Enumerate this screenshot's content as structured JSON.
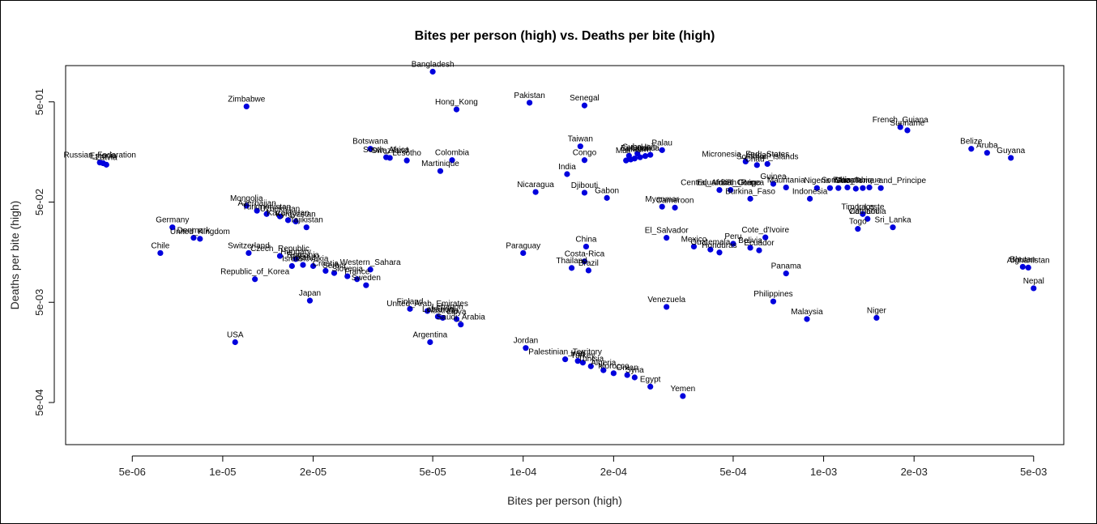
{
  "chart_data": {
    "type": "scatter",
    "title": "Bites per person (high) vs. Deaths per bite (high)",
    "xlabel": "Bites per person (high)",
    "ylabel": "Deaths per bite (high)",
    "xscale": "log",
    "yscale": "log",
    "xlim": [
      3e-06,
      0.0063
    ],
    "ylim": [
      0.00019,
      1.15
    ],
    "xticks": [
      {
        "v": 5e-06,
        "label": "5e-06"
      },
      {
        "v": 1e-05,
        "label": "1e-05"
      },
      {
        "v": 2e-05,
        "label": "2e-05"
      },
      {
        "v": 5e-05,
        "label": "5e-05"
      },
      {
        "v": 0.0001,
        "label": "1e-04"
      },
      {
        "v": 0.0002,
        "label": "2e-04"
      },
      {
        "v": 0.0005,
        "label": "5e-04"
      },
      {
        "v": 0.001,
        "label": "1e-03"
      },
      {
        "v": 0.002,
        "label": "2e-03"
      },
      {
        "v": 0.005,
        "label": "5e-03"
      }
    ],
    "yticks": [
      {
        "v": 0.0005,
        "label": "5e-04"
      },
      {
        "v": 0.005,
        "label": "5e-03"
      },
      {
        "v": 0.05,
        "label": "5e-02"
      },
      {
        "v": 0.5,
        "label": "5e-01"
      }
    ],
    "point_color": "#0000dd",
    "points": [
      {
        "name": "Bangladesh",
        "x": 5e-05,
        "y": 1.0
      },
      {
        "name": "Zimbabwe",
        "x": 1.2e-05,
        "y": 0.45
      },
      {
        "name": "Hong_Kong",
        "x": 6e-05,
        "y": 0.42
      },
      {
        "name": "Pakistan",
        "x": 0.000105,
        "y": 0.49
      },
      {
        "name": "Senegal",
        "x": 0.00016,
        "y": 0.46
      },
      {
        "name": "French_Guiana",
        "x": 0.0018,
        "y": 0.28
      },
      {
        "name": "Suriname",
        "x": 0.0019,
        "y": 0.26
      },
      {
        "name": "Russian_Federation",
        "x": 3.9e-06,
        "y": 0.124
      },
      {
        "name": "Estonia",
        "x": 4e-06,
        "y": 0.122
      },
      {
        "name": "Latvia",
        "x": 4.1e-06,
        "y": 0.118
      },
      {
        "name": "Botswana",
        "x": 3.1e-05,
        "y": 0.17
      },
      {
        "name": "South_Africa",
        "x": 3.5e-05,
        "y": 0.14
      },
      {
        "name": "Swaziland",
        "x": 3.6e-05,
        "y": 0.138
      },
      {
        "name": "Lesotho",
        "x": 4.1e-05,
        "y": 0.13
      },
      {
        "name": "Colombia",
        "x": 5.8e-05,
        "y": 0.131
      },
      {
        "name": "Martinique",
        "x": 5.3e-05,
        "y": 0.102
      },
      {
        "name": "Taiwan",
        "x": 0.000155,
        "y": 0.18
      },
      {
        "name": "Congo",
        "x": 0.00016,
        "y": 0.131
      },
      {
        "name": "India",
        "x": 0.00014,
        "y": 0.095
      },
      {
        "name": "Nicaragua",
        "x": 0.00011,
        "y": 0.063
      },
      {
        "name": "Djibouti",
        "x": 0.00016,
        "y": 0.062
      },
      {
        "name": "Gabon",
        "x": 0.00019,
        "y": 0.055
      },
      {
        "name": "Palau",
        "x": 0.00029,
        "y": 0.165
      },
      {
        "name": "Belize",
        "x": 0.0031,
        "y": 0.17
      },
      {
        "name": "Aruba",
        "x": 0.0035,
        "y": 0.155
      },
      {
        "name": "Guyana",
        "x": 0.0042,
        "y": 0.138
      },
      {
        "name": "Micronesia_Fed._States",
        "x": 0.00055,
        "y": 0.127
      },
      {
        "name": "Solomon_Islands",
        "x": 0.00065,
        "y": 0.12
      },
      {
        "name": "Guinea",
        "x": 0.00068,
        "y": 0.076
      },
      {
        "name": "Mauritania",
        "x": 0.00075,
        "y": 0.07
      },
      {
        "name": "Central_African_Rep.",
        "x": 0.00045,
        "y": 0.066
      },
      {
        "name": "Equatorial_Guinea",
        "x": 0.00049,
        "y": 0.066
      },
      {
        "name": "Burkina_Faso",
        "x": 0.00057,
        "y": 0.054
      },
      {
        "name": "Indonesia",
        "x": 0.0009,
        "y": 0.054
      },
      {
        "name": "Nigeria",
        "x": 0.00095,
        "y": 0.069
      },
      {
        "name": "Sao_Tome_and_Principe",
        "x": 0.00155,
        "y": 0.069
      },
      {
        "name": "Timor-Leste",
        "x": 0.00135,
        "y": 0.038
      },
      {
        "name": "Cambodia",
        "x": 0.0014,
        "y": 0.034
      },
      {
        "name": "Togo",
        "x": 0.0013,
        "y": 0.027
      },
      {
        "name": "Sri_Lanka",
        "x": 0.0017,
        "y": 0.028
      },
      {
        "name": "Myanmar",
        "x": 0.00029,
        "y": 0.045
      },
      {
        "name": "Cameroon",
        "x": 0.00032,
        "y": 0.044
      },
      {
        "name": "Mongolia",
        "x": 1.2e-05,
        "y": 0.046
      },
      {
        "name": "Azerbaijan",
        "x": 1.3e-05,
        "y": 0.041
      },
      {
        "name": "Turkmenistan",
        "x": 1.4e-05,
        "y": 0.038
      },
      {
        "name": "Uzbekistan",
        "x": 1.55e-05,
        "y": 0.036
      },
      {
        "name": "Kazakhstan",
        "x": 1.65e-05,
        "y": 0.033
      },
      {
        "name": "Kyrgyzstan",
        "x": 1.75e-05,
        "y": 0.032
      },
      {
        "name": "Tajikistan",
        "x": 1.9e-05,
        "y": 0.028
      },
      {
        "name": "Germany",
        "x": 6.8e-06,
        "y": 0.028
      },
      {
        "name": "Denmark",
        "x": 8e-06,
        "y": 0.022
      },
      {
        "name": "United_Kingdom",
        "x": 8.4e-06,
        "y": 0.0215
      },
      {
        "name": "Chile",
        "x": 6.2e-06,
        "y": 0.0155
      },
      {
        "name": "Switzerland",
        "x": 1.22e-05,
        "y": 0.0155
      },
      {
        "name": "Czech_Republic",
        "x": 1.55e-05,
        "y": 0.0145
      },
      {
        "name": "Hungary",
        "x": 1.75e-05,
        "y": 0.0135
      },
      {
        "name": "Israel",
        "x": 1.7e-05,
        "y": 0.0115
      },
      {
        "name": "Poland",
        "x": 1.85e-05,
        "y": 0.0118
      },
      {
        "name": "Slovakia",
        "x": 2e-05,
        "y": 0.0115
      },
      {
        "name": "Croatia",
        "x": 2.2e-05,
        "y": 0.0103
      },
      {
        "name": "Serbia",
        "x": 2.35e-05,
        "y": 0.0098
      },
      {
        "name": "Western_Sahara",
        "x": 3.1e-05,
        "y": 0.0106
      },
      {
        "name": "Slovenia",
        "x": 2.6e-05,
        "y": 0.0091
      },
      {
        "name": "France",
        "x": 2.8e-05,
        "y": 0.0085
      },
      {
        "name": "Sweden",
        "x": 3e-05,
        "y": 0.0074
      },
      {
        "name": "Republic_of_Korea",
        "x": 1.28e-05,
        "y": 0.0085
      },
      {
        "name": "Japan",
        "x": 1.95e-05,
        "y": 0.0052
      },
      {
        "name": "USA",
        "x": 1.1e-05,
        "y": 0.002
      },
      {
        "name": "Finland",
        "x": 4.2e-05,
        "y": 0.0043
      },
      {
        "name": "United_Arab_Emirates",
        "x": 4.8e-05,
        "y": 0.0041
      },
      {
        "name": "Lebanon",
        "x": 5.2e-05,
        "y": 0.0036
      },
      {
        "name": "Australia",
        "x": 5.4e-05,
        "y": 0.0035
      },
      {
        "name": "Libya",
        "x": 6e-05,
        "y": 0.0034
      },
      {
        "name": "Saudi_Arabia",
        "x": 6.2e-05,
        "y": 0.003
      },
      {
        "name": "Argentina",
        "x": 4.9e-05,
        "y": 0.002
      },
      {
        "name": "Jordan",
        "x": 0.000102,
        "y": 0.00175
      },
      {
        "name": "Paraguay",
        "x": 0.0001,
        "y": 0.0155
      },
      {
        "name": "China",
        "x": 0.000162,
        "y": 0.018
      },
      {
        "name": "Costa-Rica",
        "x": 0.00016,
        "y": 0.0128
      },
      {
        "name": "Thailand",
        "x": 0.000145,
        "y": 0.011
      },
      {
        "name": "Brazil",
        "x": 0.000165,
        "y": 0.0104
      },
      {
        "name": "El_Salvador",
        "x": 0.0003,
        "y": 0.022
      },
      {
        "name": "Mexico",
        "x": 0.00037,
        "y": 0.018
      },
      {
        "name": "Guatemala",
        "x": 0.00042,
        "y": 0.0168
      },
      {
        "name": "Honduras",
        "x": 0.00045,
        "y": 0.0157
      },
      {
        "name": "Peru",
        "x": 0.0005,
        "y": 0.0192
      },
      {
        "name": "Bolivia",
        "x": 0.00057,
        "y": 0.0175
      },
      {
        "name": "Ecuador",
        "x": 0.00061,
        "y": 0.0165
      },
      {
        "name": "Cote_d'Ivoire",
        "x": 0.00064,
        "y": 0.0222
      },
      {
        "name": "Panama",
        "x": 0.00075,
        "y": 0.0097
      },
      {
        "name": "Philippines",
        "x": 0.00068,
        "y": 0.0051
      },
      {
        "name": "Venezuela",
        "x": 0.0003,
        "y": 0.0045
      },
      {
        "name": "Malaysia",
        "x": 0.00088,
        "y": 0.0034
      },
      {
        "name": "Niger",
        "x": 0.0015,
        "y": 0.0035
      },
      {
        "name": "Bhutan",
        "x": 0.0046,
        "y": 0.0113
      },
      {
        "name": "Afghanistan",
        "x": 0.0048,
        "y": 0.0111
      },
      {
        "name": "Nepal",
        "x": 0.005,
        "y": 0.0069
      },
      {
        "name": "Palestinian_Territory",
        "x": 0.000138,
        "y": 0.00135
      },
      {
        "name": "Iraq",
        "x": 0.000152,
        "y": 0.0013
      },
      {
        "name": "Turkey",
        "x": 0.000158,
        "y": 0.00125
      },
      {
        "name": "Tunisia",
        "x": 0.000168,
        "y": 0.00115
      },
      {
        "name": "Algeria",
        "x": 0.000185,
        "y": 0.00105
      },
      {
        "name": "Morocco",
        "x": 0.0002,
        "y": 0.00098
      },
      {
        "name": "Oman",
        "x": 0.000222,
        "y": 0.00094
      },
      {
        "name": "Syria",
        "x": 0.000235,
        "y": 0.00089
      },
      {
        "name": "Egypt",
        "x": 0.000265,
        "y": 0.00072
      },
      {
        "name": "Yemen",
        "x": 0.00034,
        "y": 0.00058
      }
    ],
    "unlabeled_points": [
      {
        "x": 0.00022,
        "y": 0.13
      },
      {
        "x": 0.000228,
        "y": 0.133
      },
      {
        "x": 0.000235,
        "y": 0.136
      },
      {
        "x": 0.000245,
        "y": 0.14
      },
      {
        "x": 0.000255,
        "y": 0.144
      },
      {
        "x": 0.000265,
        "y": 0.148
      },
      {
        "x": 0.00024,
        "y": 0.152
      },
      {
        "x": 0.000225,
        "y": 0.145
      },
      {
        "x": 0.0006,
        "y": 0.117
      },
      {
        "x": 0.00105,
        "y": 0.069
      },
      {
        "x": 0.00112,
        "y": 0.069
      },
      {
        "x": 0.0012,
        "y": 0.07
      },
      {
        "x": 0.00128,
        "y": 0.068
      },
      {
        "x": 0.00135,
        "y": 0.069
      },
      {
        "x": 0.00142,
        "y": 0.07
      }
    ],
    "point_labels_overlap": [
      {
        "text": "Cuba",
        "x": 0.00023,
        "y": 0.15
      },
      {
        "text": "Burundi",
        "x": 0.000235,
        "y": 0.146
      },
      {
        "text": "Malawi",
        "x": 0.000242,
        "y": 0.142
      },
      {
        "text": "Uganda",
        "x": 0.000255,
        "y": 0.146
      },
      {
        "text": "Mali",
        "x": 0.000215,
        "y": 0.138
      },
      {
        "text": "Haiti",
        "x": 0.000262,
        "y": 0.15
      },
      {
        "text": "Sudan",
        "x": 0.00061,
        "y": 0.124
      },
      {
        "text": "Chad",
        "x": 0.00059,
        "y": 0.113
      },
      {
        "text": "DR_Congo",
        "x": 0.00053,
        "y": 0.066
      },
      {
        "text": "Somalia",
        "x": 0.0011,
        "y": 0.07
      },
      {
        "text": "Ethiopia",
        "x": 0.0012,
        "y": 0.07
      },
      {
        "text": "Mozambique",
        "x": 0.0013,
        "y": 0.07
      },
      {
        "text": "Laos",
        "x": 0.00138,
        "y": 0.038
      },
      {
        "text": "Vietnam",
        "x": 0.00135,
        "y": 0.034
      },
      {
        "text": "Romania",
        "x": 1.85e-05,
        "y": 0.0125
      },
      {
        "text": "Iran",
        "x": 0.000152,
        "y": 0.0013
      },
      {
        "text": "Lebanon",
        "x": 5.6e-05,
        "y": 0.0038
      }
    ]
  }
}
